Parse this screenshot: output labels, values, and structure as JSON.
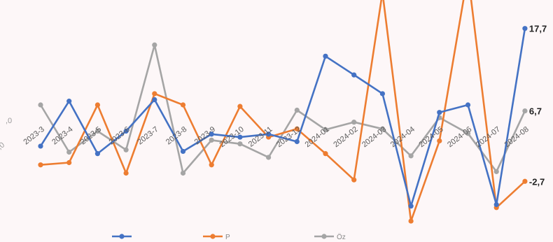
{
  "chart_data": {
    "type": "line",
    "title": "",
    "xlabel": "",
    "ylabel": "",
    "categories": [
      "2023-3",
      "2023-4",
      "2023-5",
      "2023-6",
      "2023-7",
      "2023-8",
      "2023-9",
      "2023-10",
      "2023-11",
      "2023-12",
      "2024-01",
      "2024-02",
      "2024-03",
      "2024-04",
      "2024-05",
      "2024-06",
      "2024-07",
      "2024-08"
    ],
    "y_ticks": [
      ",0",
      ",0"
    ],
    "ylim": [
      -6.5,
      21.5
    ],
    "series": [
      {
        "name": "",
        "color": "#4472c4",
        "values": [
          2.0,
          8.0,
          1.0,
          4.0,
          8.2,
          1.3,
          3.6,
          3.2,
          3.6,
          2.6,
          14.0,
          11.5,
          9.0,
          -6.0,
          6.5,
          7.5,
          -5.8,
          17.7
        ]
      },
      {
        "name": "P",
        "color": "#ed7d31",
        "values": [
          -0.5,
          -0.2,
          7.5,
          -1.6,
          9.0,
          7.5,
          -0.5,
          7.3,
          3.2,
          4.3,
          1.0,
          -2.5,
          22.5,
          -8.0,
          2.7,
          25.0,
          -6.2,
          -2.7
        ]
      },
      {
        "name": "Öz",
        "color": "#a5a5a5",
        "values": [
          7.5,
          1.2,
          4.0,
          1.5,
          15.5,
          -1.6,
          2.8,
          2.3,
          0.5,
          6.8,
          4.2,
          5.2,
          4.3,
          0.7,
          5.8,
          3.7,
          -1.4,
          6.7
        ]
      }
    ],
    "end_labels": [
      "17,7",
      "6,7",
      "-2,7"
    ],
    "legend": {
      "placement": "bottom",
      "entries": [
        "",
        "P",
        "Öz"
      ]
    },
    "grid": false
  }
}
